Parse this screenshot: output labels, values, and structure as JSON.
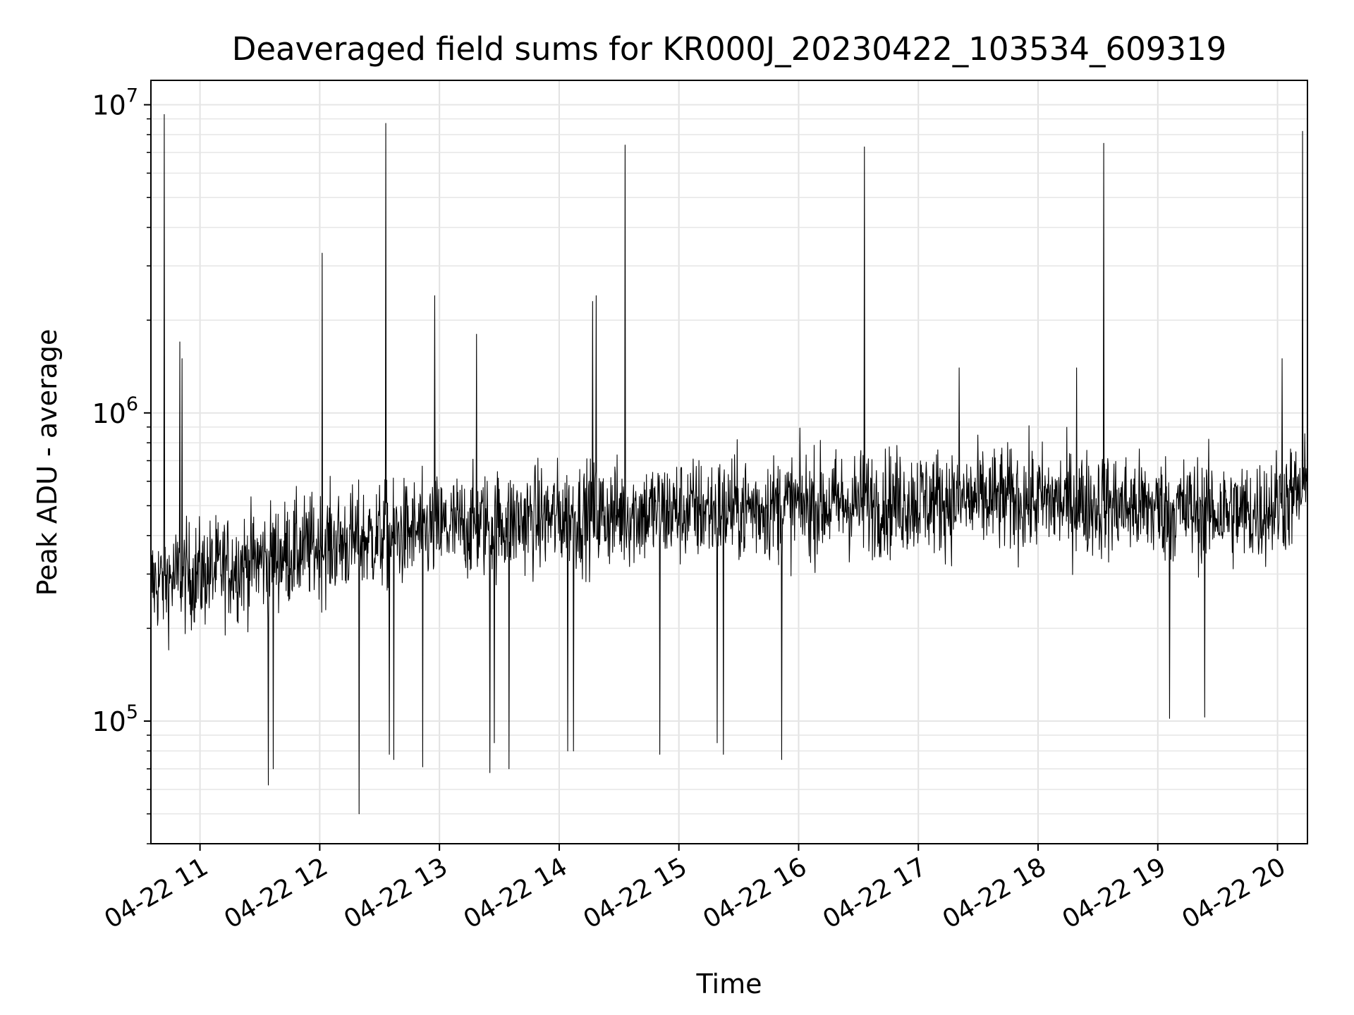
{
  "chart_data": {
    "type": "line",
    "title": "Deaveraged field sums for KR000J_20230422_103534_609319",
    "xlabel": "Time",
    "ylabel": "Peak ADU - average",
    "yscale": "log",
    "ylim": [
      40000,
      12000000
    ],
    "xlim_hours": [
      10.59,
      20.25
    ],
    "grid": true,
    "legend": "none",
    "x_ticks": [
      {
        "hour": 11,
        "label": "04-22 11"
      },
      {
        "hour": 12,
        "label": "04-22 12"
      },
      {
        "hour": 13,
        "label": "04-22 13"
      },
      {
        "hour": 14,
        "label": "04-22 14"
      },
      {
        "hour": 15,
        "label": "04-22 15"
      },
      {
        "hour": 16,
        "label": "04-22 16"
      },
      {
        "hour": 17,
        "label": "04-22 17"
      },
      {
        "hour": 18,
        "label": "04-22 18"
      },
      {
        "hour": 19,
        "label": "04-22 19"
      },
      {
        "hour": 20,
        "label": "04-22 20"
      }
    ],
    "y_ticks": [
      {
        "value": 100000,
        "base": "10",
        "exp": "5"
      },
      {
        "value": 1000000,
        "base": "10",
        "exp": "6"
      },
      {
        "value": 10000000,
        "base": "10",
        "exp": "7"
      }
    ],
    "series": [
      {
        "name": "Peak ADU - average",
        "color": "#000000",
        "baseline_trend": [
          {
            "hour": 10.6,
            "value": 280000
          },
          {
            "hour": 11.0,
            "value": 300000
          },
          {
            "hour": 12.0,
            "value": 370000
          },
          {
            "hour": 13.0,
            "value": 420000
          },
          {
            "hour": 14.0,
            "value": 460000
          },
          {
            "hour": 15.0,
            "value": 480000
          },
          {
            "hour": 16.0,
            "value": 500000
          },
          {
            "hour": 17.0,
            "value": 520000
          },
          {
            "hour": 18.0,
            "value": 520000
          },
          {
            "hour": 19.0,
            "value": 490000
          },
          {
            "hour": 19.8,
            "value": 470000
          },
          {
            "hour": 20.25,
            "value": 560000
          }
        ],
        "spikes": [
          {
            "hour": 10.7,
            "value": 9300000
          },
          {
            "hour": 10.83,
            "value": 1700000
          },
          {
            "hour": 10.85,
            "value": 1500000
          },
          {
            "hour": 12.02,
            "value": 3300000
          },
          {
            "hour": 12.55,
            "value": 8700000
          },
          {
            "hour": 12.96,
            "value": 2400000
          },
          {
            "hour": 13.31,
            "value": 1800000
          },
          {
            "hour": 14.28,
            "value": 2300000
          },
          {
            "hour": 14.31,
            "value": 2400000
          },
          {
            "hour": 14.55,
            "value": 7400000
          },
          {
            "hour": 16.55,
            "value": 7300000
          },
          {
            "hour": 17.34,
            "value": 1400000
          },
          {
            "hour": 18.32,
            "value": 1400000
          },
          {
            "hour": 18.55,
            "value": 7500000
          },
          {
            "hour": 20.04,
            "value": 1500000
          },
          {
            "hour": 20.21,
            "value": 8200000
          }
        ],
        "dips": [
          {
            "hour": 11.57,
            "value": 62000
          },
          {
            "hour": 11.61,
            "value": 70000
          },
          {
            "hour": 12.33,
            "value": 50000
          },
          {
            "hour": 12.58,
            "value": 78000
          },
          {
            "hour": 12.62,
            "value": 75000
          },
          {
            "hour": 12.86,
            "value": 71000
          },
          {
            "hour": 13.42,
            "value": 68000
          },
          {
            "hour": 13.46,
            "value": 85000
          },
          {
            "hour": 13.58,
            "value": 70000
          },
          {
            "hour": 14.07,
            "value": 80000
          },
          {
            "hour": 14.12,
            "value": 80000
          },
          {
            "hour": 14.84,
            "value": 78000
          },
          {
            "hour": 15.32,
            "value": 85000
          },
          {
            "hour": 15.37,
            "value": 78000
          },
          {
            "hour": 15.86,
            "value": 75000
          },
          {
            "hour": 19.1,
            "value": 102000
          },
          {
            "hour": 19.39,
            "value": 103000
          }
        ]
      }
    ]
  }
}
